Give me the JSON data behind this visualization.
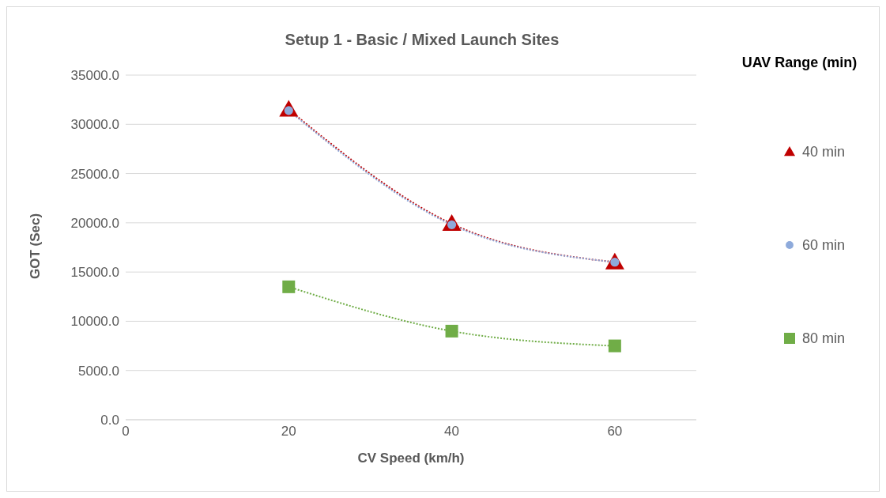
{
  "chart_data": {
    "type": "line",
    "title": "Setup 1 - Basic / Mixed Launch Sites",
    "xlabel": "CV Speed (km/h)",
    "ylabel": "GOT (Sec)",
    "legend_title": "UAV Range (min)",
    "legend": "right",
    "grid": "y",
    "line_style": "dotted",
    "x": [
      20,
      40,
      60
    ],
    "xlim": [
      0,
      70
    ],
    "xticks": [
      0,
      20,
      40,
      60
    ],
    "ylim": [
      0,
      35000
    ],
    "yticks": [
      {
        "value": 0,
        "label": "0.0"
      },
      {
        "value": 5000,
        "label": "5000.0"
      },
      {
        "value": 10000,
        "label": "10000.0"
      },
      {
        "value": 15000,
        "label": "15000.0"
      },
      {
        "value": 20000,
        "label": "20000.0"
      },
      {
        "value": 25000,
        "label": "25000.0"
      },
      {
        "value": 30000,
        "label": "30000.0"
      },
      {
        "value": 35000,
        "label": "35000.0"
      }
    ],
    "series": [
      {
        "name": "40 min",
        "color": "#c00000",
        "marker": "triangle",
        "values": [
          31500,
          19900,
          16000
        ]
      },
      {
        "name": "60 min",
        "color": "#8eaadb",
        "marker": "circle",
        "values": [
          31400,
          19800,
          16000
        ]
      },
      {
        "name": "80 min",
        "color": "#70ad47",
        "marker": "square",
        "values": [
          13500,
          9000,
          7500
        ]
      }
    ]
  }
}
